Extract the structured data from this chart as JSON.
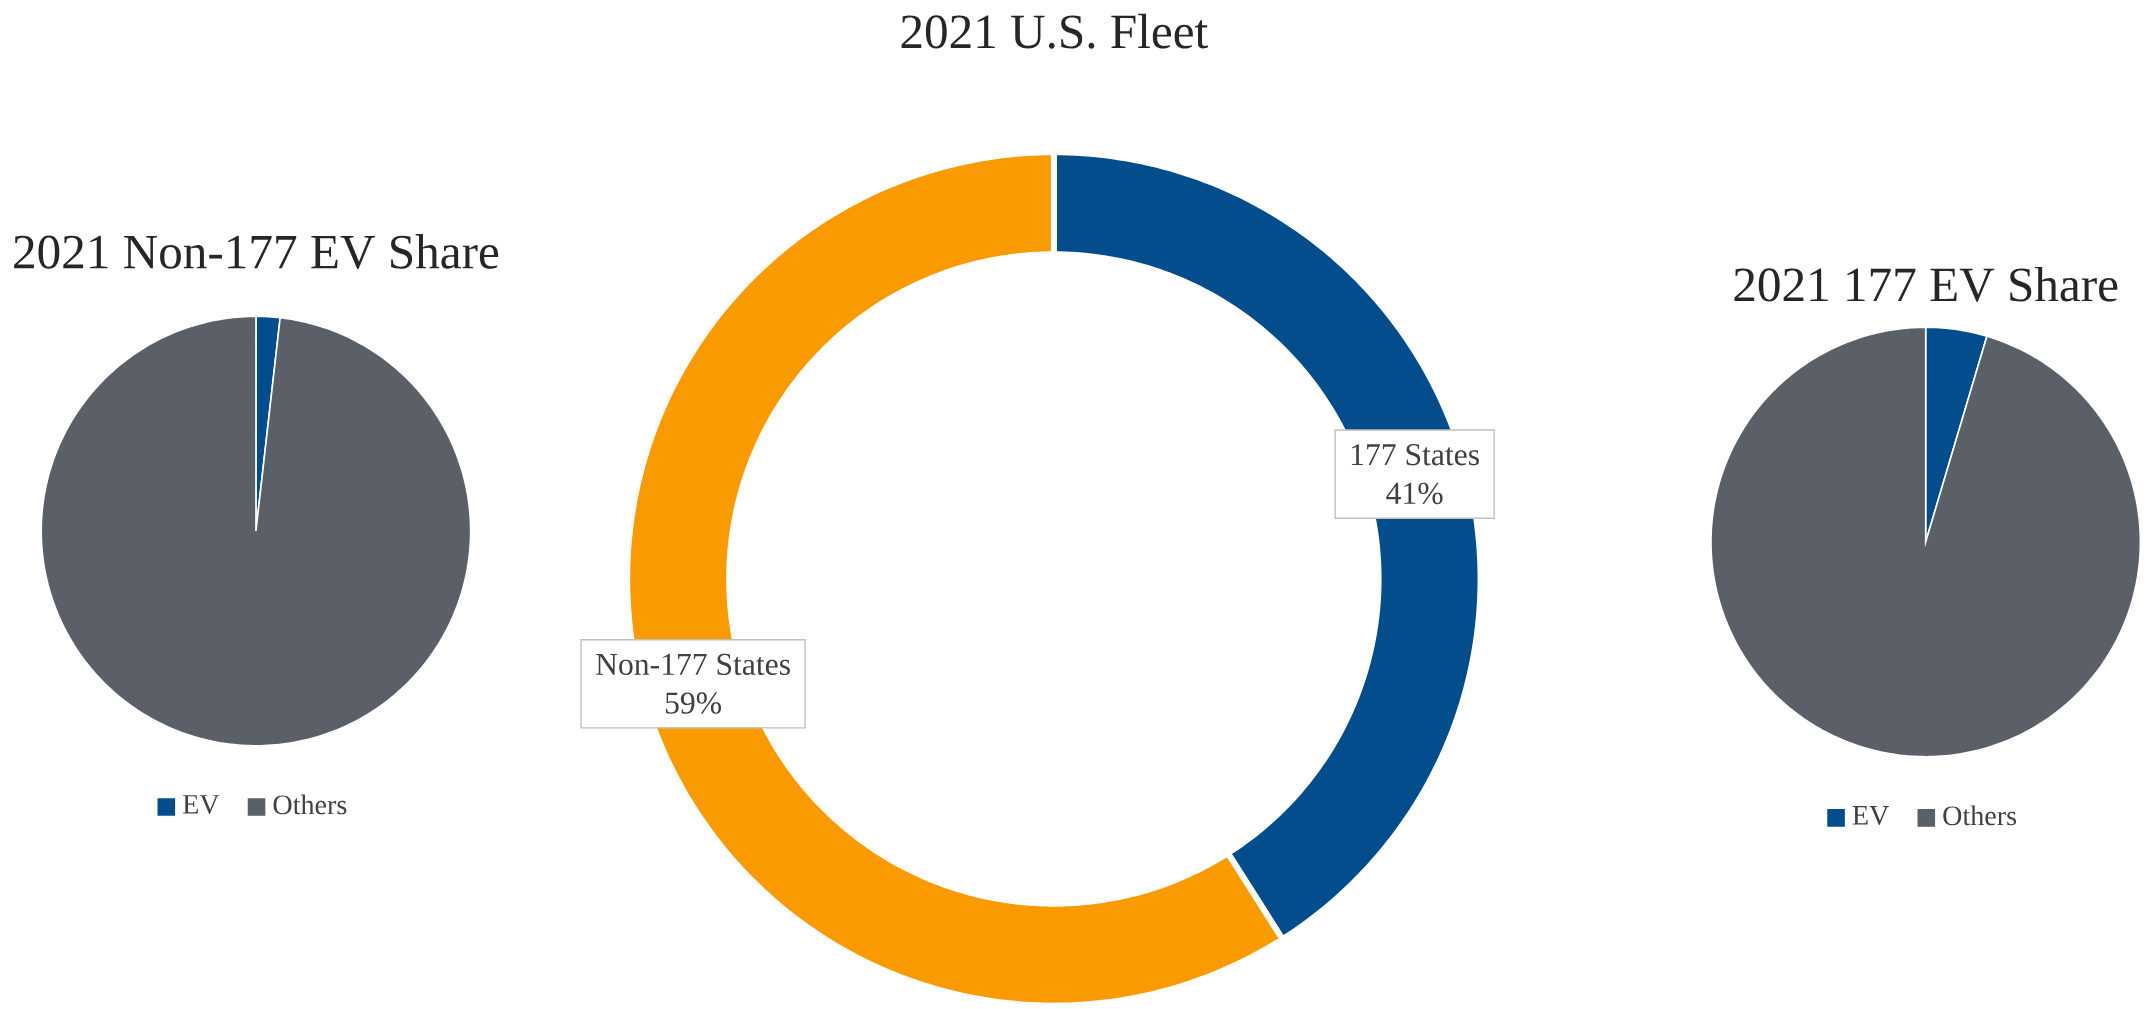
{
  "chart_data": [
    {
      "type": "pie",
      "title": "2021 Non-177 EV Share",
      "categories": [
        "EV",
        "Others"
      ],
      "values": [
        1.8,
        98.2
      ],
      "colors": [
        "#034d8c",
        "#5b6068"
      ],
      "legend": "bottom"
    },
    {
      "type": "donut",
      "title": "2021 U.S. Fleet",
      "categories": [
        "177 States",
        "Non-177 States"
      ],
      "values": [
        41,
        59
      ],
      "colors": [
        "#034d8c",
        "#f99a00"
      ],
      "value_labels": [
        "41%",
        "59%"
      ]
    },
    {
      "type": "pie",
      "title": "2021 177 EV Share",
      "categories": [
        "EV",
        "Others"
      ],
      "values": [
        4.6,
        95.4
      ],
      "colors": [
        "#034d8c",
        "#5b6068"
      ],
      "legend": "bottom"
    }
  ]
}
